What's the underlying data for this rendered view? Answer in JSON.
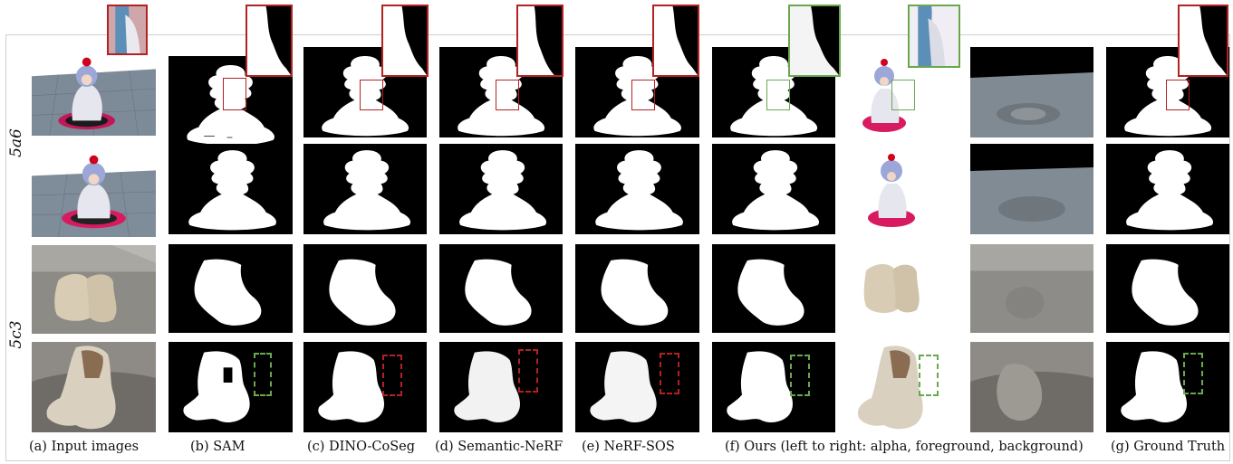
{
  "row_labels": [
    "5a6",
    "5c3"
  ],
  "captions": {
    "input": "(a) Input images",
    "sam": "(b) SAM",
    "dino": "(c) DINO-CoSeg",
    "semantic": "(d) Semantic-NeRF",
    "nerfsos": "(e) NeRF-SOS",
    "ours": "(f) Ours (left to right: alpha, foreground, background)",
    "gt": "(g) Ground Truth"
  },
  "colors": {
    "highlight_red": "#b22222",
    "highlight_green": "#6aa84f",
    "mask_bg": "#000000",
    "mask_fg": "#ffffff"
  }
}
